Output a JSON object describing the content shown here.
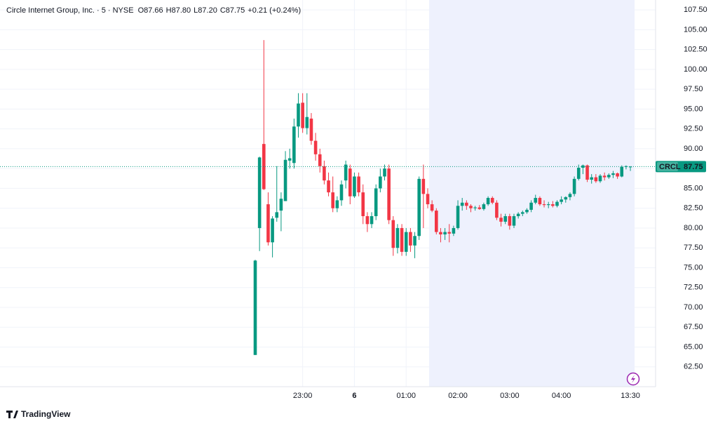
{
  "chart_data": {
    "type": "candlestick",
    "title": "Circle Internet Group, Inc. · 5 · NYSE",
    "legend_values": [
      {
        "label": "O",
        "text": "87.66"
      },
      {
        "label": "H",
        "text": "87.80"
      },
      {
        "label": "L",
        "text": "87.20"
      },
      {
        "label": "C",
        "text": "87.75"
      }
    ],
    "change": "+0.21 (+0.24%)",
    "symbol": "CRCL",
    "last_price": 87.75,
    "up_color": "#089981",
    "down_color": "#f23645",
    "grid": true,
    "brand": "TradingView",
    "categories": [
      null,
      null,
      null,
      null,
      null,
      null,
      null,
      null,
      null,
      null,
      null,
      "23:00",
      null,
      null,
      null,
      null,
      null,
      null,
      null,
      null,
      null,
      null,
      null,
      "6",
      null,
      null,
      null,
      null,
      null,
      null,
      null,
      null,
      null,
      null,
      null,
      "01:00",
      null,
      null,
      null,
      null,
      null,
      null,
      null,
      null,
      null,
      null,
      null,
      "02:00",
      null,
      null,
      null,
      null,
      null,
      null,
      null,
      null,
      null,
      null,
      null,
      "03:00",
      null,
      null,
      null,
      null,
      null,
      null,
      null,
      null,
      null,
      null,
      null,
      "04:00",
      null,
      null,
      null,
      null,
      null,
      null,
      null,
      null,
      null,
      null,
      null,
      null,
      null,
      null,
      null,
      "13:30"
    ],
    "open": [
      64.0,
      80.0,
      90.6,
      83.0,
      78.2,
      81.3,
      82.2,
      83.4,
      88.5,
      88.2,
      92.8,
      95.8,
      92.6,
      93.8,
      91.0,
      89.3,
      87.8,
      86.0,
      84.5,
      82.5,
      83.5,
      86.0,
      87.5,
      84.0,
      86.5,
      84.5,
      81.5,
      80.5,
      81.5,
      85.0,
      86.5,
      87.5,
      81.0,
      77.5,
      80.0,
      77.0,
      79.5,
      77.8,
      79.0,
      86.2,
      84.3,
      83.0,
      82.2,
      79.5,
      79.2,
      79.5,
      79.3,
      80.0,
      82.8,
      83.2,
      82.8,
      82.5,
      82.6,
      82.4,
      83.0,
      83.8,
      83.2,
      81.3,
      80.8,
      81.5,
      80.3,
      81.5,
      81.8,
      82.0,
      82.3,
      83.2,
      83.8,
      83.0,
      82.9,
      83.0,
      82.8,
      83.3,
      83.6,
      83.9,
      84.3,
      86.2,
      87.6,
      87.9,
      86.1,
      86.4,
      85.9,
      86.6,
      86.4,
      86.7,
      86.9,
      86.5,
      87.7,
      87.66
    ],
    "high": [
      76.0,
      89.0,
      103.7,
      84.5,
      81.5,
      87.8,
      84.5,
      89.7,
      90.0,
      93.8,
      97.0,
      97.0,
      97.0,
      94.5,
      92.0,
      90.0,
      88.5,
      87.0,
      86.5,
      84.0,
      86.0,
      88.5,
      88.0,
      87.0,
      87.0,
      85.5,
      82.0,
      82.0,
      85.5,
      87.5,
      88.0,
      88.0,
      81.5,
      80.5,
      80.5,
      80.0,
      80.0,
      79.5,
      86.5,
      88.0,
      85.0,
      83.5,
      82.5,
      80.0,
      80.0,
      80.5,
      80.3,
      83.5,
      83.8,
      83.5,
      83.0,
      82.8,
      82.9,
      83.2,
      84.0,
      84.0,
      83.5,
      81.8,
      81.8,
      81.8,
      81.8,
      82.0,
      82.2,
      82.5,
      83.5,
      84.2,
      84.0,
      83.5,
      83.3,
      83.4,
      83.5,
      84.0,
      84.0,
      84.5,
      86.5,
      88.0,
      88.0,
      88.0,
      86.8,
      86.8,
      86.8,
      87.0,
      86.9,
      87.2,
      87.0,
      87.9,
      87.9,
      87.8
    ],
    "low": [
      64.0,
      77.1,
      84.8,
      77.8,
      76.3,
      80.8,
      79.6,
      83.4,
      87.5,
      87.5,
      91.4,
      92.0,
      91.8,
      90.5,
      88.5,
      87.0,
      85.5,
      84.0,
      82.0,
      82.0,
      82.8,
      85.0,
      83.0,
      83.8,
      84.0,
      80.5,
      79.5,
      80.0,
      81.0,
      84.5,
      86.0,
      80.5,
      76.5,
      76.8,
      76.5,
      76.5,
      77.0,
      76.2,
      78.5,
      80.0,
      82.5,
      82.0,
      79.2,
      78.2,
      78.5,
      78.2,
      79.0,
      79.8,
      82.2,
      82.3,
      82.0,
      82.2,
      82.3,
      82.2,
      82.8,
      83.0,
      81.0,
      80.2,
      80.5,
      79.8,
      80.0,
      81.2,
      81.5,
      81.8,
      82.0,
      83.0,
      82.8,
      82.6,
      82.5,
      82.6,
      82.6,
      83.0,
      83.2,
      83.5,
      84.0,
      86.0,
      86.8,
      85.8,
      85.6,
      85.7,
      85.7,
      86.0,
      86.2,
      86.3,
      86.2,
      86.4,
      87.4,
      87.2
    ],
    "close": [
      75.9,
      88.9,
      84.9,
      78.2,
      81.2,
      82.0,
      83.7,
      88.6,
      88.8,
      92.8,
      95.7,
      92.6,
      94.0,
      91.0,
      89.3,
      87.8,
      86.0,
      84.5,
      82.5,
      83.5,
      85.5,
      88.0,
      84.0,
      86.5,
      84.5,
      81.5,
      80.5,
      81.5,
      85.0,
      86.5,
      87.5,
      81.0,
      77.5,
      80.0,
      77.0,
      79.5,
      77.8,
      79.0,
      86.2,
      84.3,
      83.0,
      82.2,
      79.5,
      79.2,
      79.5,
      79.3,
      80.0,
      82.8,
      83.2,
      82.8,
      82.5,
      82.6,
      82.4,
      83.0,
      83.8,
      83.2,
      81.3,
      80.8,
      81.5,
      80.3,
      81.5,
      81.8,
      82.0,
      82.3,
      83.2,
      83.8,
      83.0,
      82.9,
      83.0,
      82.8,
      83.3,
      83.6,
      83.9,
      84.3,
      86.2,
      87.6,
      87.9,
      86.1,
      86.4,
      85.9,
      86.6,
      86.4,
      86.7,
      86.9,
      86.5,
      87.7,
      87.8,
      87.75
    ],
    "ylim": [
      60.0,
      108.75
    ],
    "yticks": [
      {
        "value": 62.5,
        "label": "62.50"
      },
      {
        "value": 65,
        "label": "65.00"
      },
      {
        "value": 67.5,
        "label": "67.50"
      },
      {
        "value": 70,
        "label": "70.00"
      },
      {
        "value": 72.5,
        "label": "72.50"
      },
      {
        "value": 75,
        "label": "75.00"
      },
      {
        "value": 77.5,
        "label": "77.50"
      },
      {
        "value": 80,
        "label": "80.00"
      },
      {
        "value": 82.5,
        "label": "82.50"
      },
      {
        "value": 85,
        "label": "85.00"
      },
      {
        "value": 87.5,
        "label": "87.50"
      },
      {
        "value": 90,
        "label": "90.00"
      },
      {
        "value": 92.5,
        "label": "92.50"
      },
      {
        "value": 95,
        "label": "95.00"
      },
      {
        "value": 97.5,
        "label": "97.50"
      },
      {
        "value": 100,
        "label": "100.00"
      },
      {
        "value": 102.5,
        "label": "102.50"
      },
      {
        "value": 105,
        "label": "105.00"
      },
      {
        "value": 107.5,
        "label": "107.50"
      }
    ]
  }
}
